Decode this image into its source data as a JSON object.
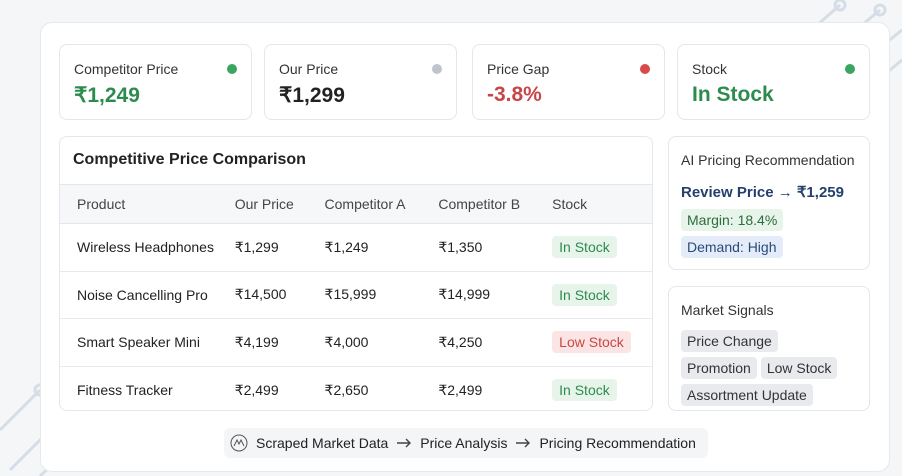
{
  "stats": [
    {
      "label": "Competitor Price",
      "value": "₹1,249"
    },
    {
      "label": "Our Price",
      "value": "₹1,299"
    },
    {
      "label": "Price Gap",
      "value": "-3.8%"
    },
    {
      "label": "Stock",
      "value": "In Stock"
    }
  ],
  "table": {
    "title": "Competitive Price Comparison",
    "columns": [
      "Product",
      "Our Price",
      "Competitor A",
      "Competitor B",
      "Stock"
    ],
    "rows": [
      [
        "Wireless Headphones",
        "₹1,299",
        "₹1,249",
        "₹1,350",
        "In Stock"
      ],
      [
        "Noise Cancelling Pro",
        "₹14,500",
        "₹15,999",
        "₹14,999",
        "In Stock"
      ],
      [
        "Smart Speaker Mini",
        "₹4,199",
        "₹4,000",
        "₹4,250",
        "Low Stock"
      ],
      [
        "Fitness Tracker",
        "₹2,499",
        "₹2,650",
        "₹2,499",
        "In Stock"
      ]
    ]
  },
  "recommendation": {
    "title": "AI Pricing Recommendation",
    "action": "Review Price → ₹1,259",
    "tags": [
      "Margin: 18.4%",
      "Demand: High"
    ]
  },
  "signals": {
    "title": "Market Signals",
    "tags": [
      "Price Change",
      "Promotion",
      "Low Stock",
      "Assortment Update"
    ]
  },
  "pipeline": [
    "Scraped Market Data",
    "Price Analysis",
    "Pricing Recommendation"
  ]
}
